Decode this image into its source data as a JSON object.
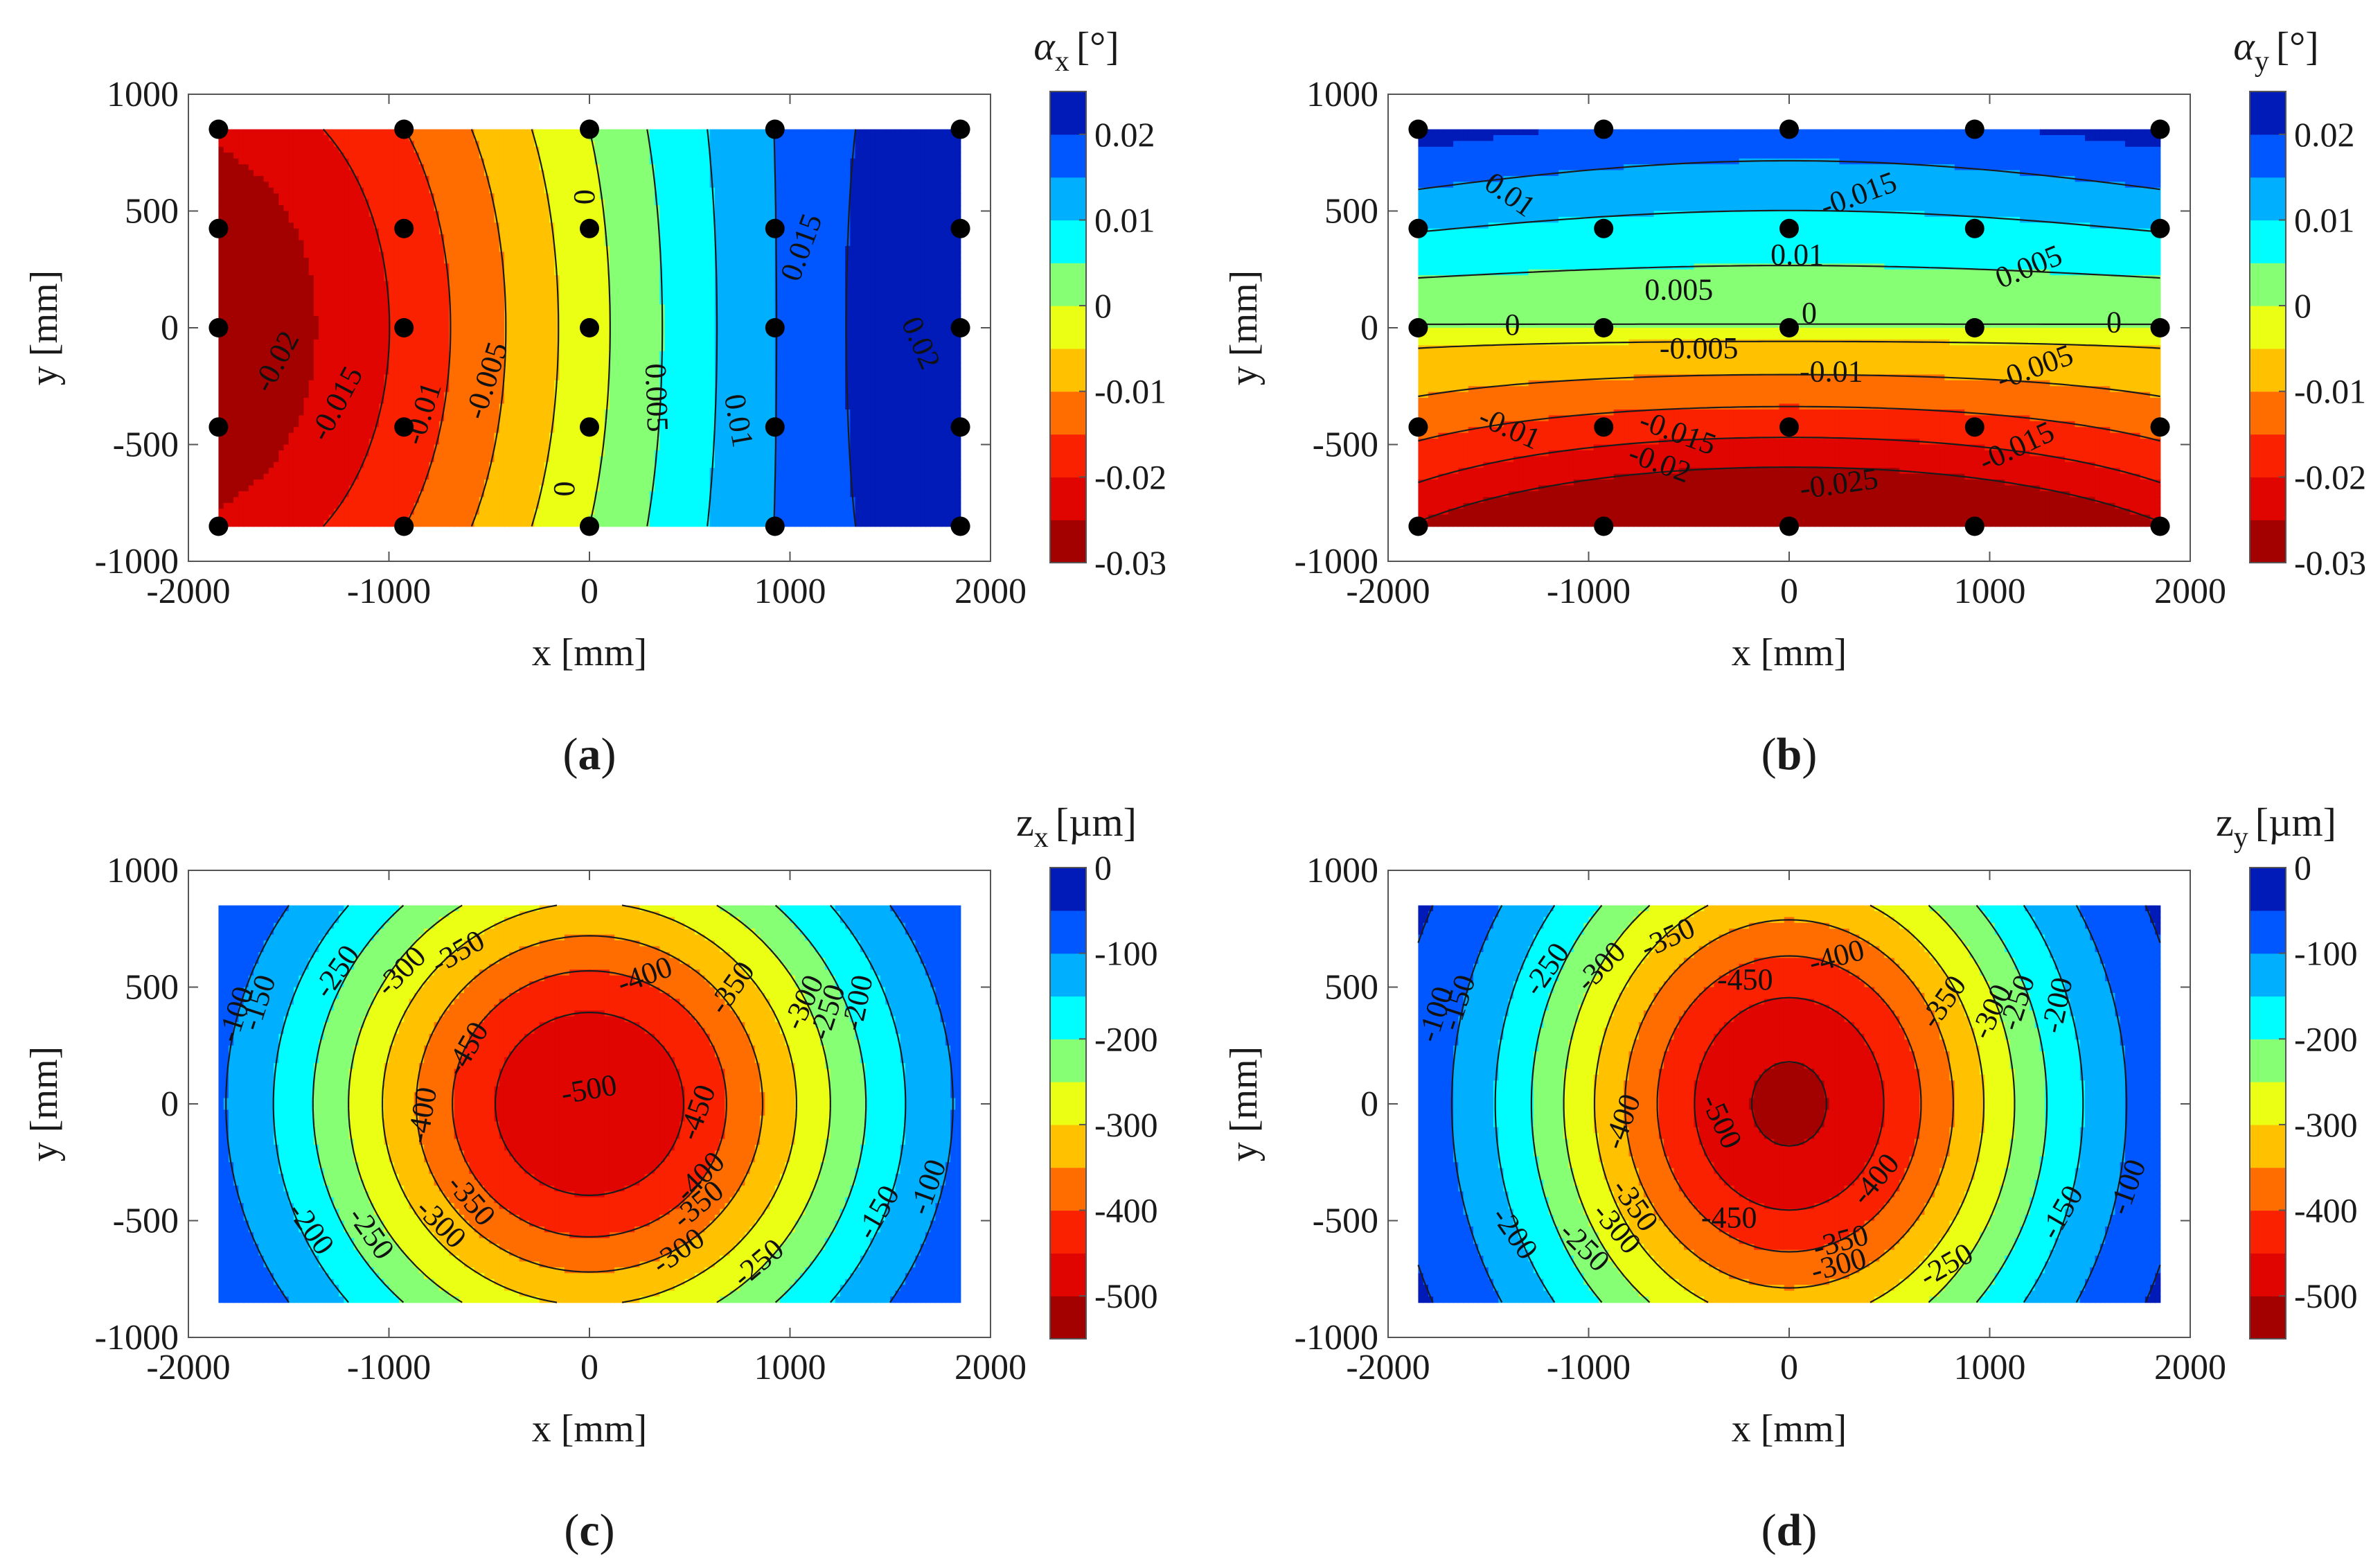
{
  "chart_data": [
    {
      "id": "a",
      "type": "heatmap",
      "subtype": "filled-contour",
      "panel_label": "a",
      "xlabel": "x [mm]",
      "ylabel": "y [mm]",
      "xlim": [
        -2000,
        2000
      ],
      "ylim": [
        -1000,
        1000
      ],
      "xticks": [
        -2000,
        -1000,
        0,
        1000,
        2000
      ],
      "xtick_labels": [
        "-2000",
        "-1000",
        "0",
        "1000",
        "2000"
      ],
      "yticks": [
        -1000,
        -500,
        0,
        500,
        1000
      ],
      "ytick_labels": [
        "-1000",
        "-500",
        "0",
        "500",
        "1000"
      ],
      "data_extent": {
        "x": [
          -1850,
          1850
        ],
        "y": [
          -850,
          850
        ]
      },
      "colorbar": {
        "title_symbol": "α",
        "title_subscript": "x",
        "title_unit": "[°]",
        "range": [
          -0.03,
          0.025
        ],
        "step": 0.005,
        "ticks": [
          -0.03,
          -0.02,
          -0.01,
          0,
          0.01,
          0.02
        ],
        "tick_labels": [
          "-0.03",
          "-0.02",
          "-0.01",
          "0",
          "0.01",
          "0.02"
        ]
      },
      "field": {
        "kind": "alpha_x"
      },
      "contour_levels": [
        -0.02,
        -0.015,
        -0.01,
        -0.005,
        0,
        0.005,
        0.01,
        0.015,
        0.02
      ],
      "contour_labels": [
        {
          "text": "-0.02",
          "x": -1550,
          "y": -150,
          "angle": -62
        },
        {
          "text": "-0.015",
          "x": -1250,
          "y": -330,
          "angle": -62
        },
        {
          "text": "-0.01",
          "x": -820,
          "y": -370,
          "angle": -72
        },
        {
          "text": "-0.005",
          "x": -500,
          "y": -230,
          "angle": -72
        },
        {
          "text": "0",
          "x": -10,
          "y": 560,
          "angle": -90
        },
        {
          "text": "0",
          "x": -110,
          "y": -690,
          "angle": -90
        },
        {
          "text": "0.005",
          "x": 320,
          "y": -300,
          "angle": 88
        },
        {
          "text": "0.01",
          "x": 730,
          "y": -400,
          "angle": 80
        },
        {
          "text": "0.015",
          "x": 1070,
          "y": 340,
          "angle": -70
        },
        {
          "text": "0.02",
          "x": 1640,
          "y": -70,
          "angle": 66
        }
      ],
      "points": {
        "x": [
          -1850,
          -925,
          0,
          925,
          1850
        ],
        "y": [
          850,
          425,
          0,
          -425,
          -850
        ]
      }
    },
    {
      "id": "b",
      "type": "heatmap",
      "subtype": "filled-contour",
      "panel_label": "b",
      "xlabel": "x [mm]",
      "ylabel": "y [mm]",
      "xlim": [
        -2000,
        2000
      ],
      "ylim": [
        -1000,
        1000
      ],
      "xticks": [
        -2000,
        -1000,
        0,
        1000,
        2000
      ],
      "xtick_labels": [
        "-2000",
        "-1000",
        "0",
        "1000",
        "2000"
      ],
      "yticks": [
        -1000,
        -500,
        0,
        500,
        1000
      ],
      "ytick_labels": [
        "-1000",
        "-500",
        "0",
        "500",
        "1000"
      ],
      "data_extent": {
        "x": [
          -1850,
          1850
        ],
        "y": [
          -850,
          850
        ]
      },
      "colorbar": {
        "title_symbol": "α",
        "title_subscript": "y",
        "title_unit": "[°]",
        "range": [
          -0.03,
          0.025
        ],
        "step": 0.005,
        "ticks": [
          -0.03,
          -0.02,
          -0.01,
          0,
          0.01,
          0.02
        ],
        "tick_labels": [
          "-0.03",
          "-0.02",
          "-0.01",
          "0",
          "0.01",
          "0.02"
        ]
      },
      "field": {
        "kind": "alpha_y"
      },
      "contour_levels": [
        -0.025,
        -0.02,
        -0.015,
        -0.01,
        -0.005,
        0,
        0.005,
        0.01,
        0.015
      ],
      "contour_labels": [
        {
          "text": "0.01",
          "x": -1400,
          "y": 560,
          "angle": 35
        },
        {
          "text": "-0.015",
          "x": 350,
          "y": 560,
          "angle": -20
        },
        {
          "text": "0.01",
          "x": 40,
          "y": 300,
          "angle": 0
        },
        {
          "text": "0.005",
          "x": 1200,
          "y": 250,
          "angle": -22
        },
        {
          "text": "0.005",
          "x": -550,
          "y": 150,
          "angle": 0
        },
        {
          "text": "0",
          "x": -1380,
          "y": 0,
          "angle": 0
        },
        {
          "text": "0",
          "x": 100,
          "y": 50,
          "angle": 0
        },
        {
          "text": "0",
          "x": 1620,
          "y": 10,
          "angle": 0
        },
        {
          "text": "-0.005",
          "x": -450,
          "y": -100,
          "angle": 0
        },
        {
          "text": "-0.005",
          "x": 1230,
          "y": -180,
          "angle": -20
        },
        {
          "text": "-0.01",
          "x": 210,
          "y": -200,
          "angle": 0
        },
        {
          "text": "-0.01",
          "x": -1400,
          "y": -440,
          "angle": 24
        },
        {
          "text": "-0.015",
          "x": -560,
          "y": -460,
          "angle": 20
        },
        {
          "text": "-0.015",
          "x": 1140,
          "y": -520,
          "angle": -25
        },
        {
          "text": "-0.02",
          "x": -650,
          "y": -590,
          "angle": 20
        },
        {
          "text": "-0.025",
          "x": 250,
          "y": -680,
          "angle": -8
        }
      ],
      "points": {
        "x": [
          -1850,
          -925,
          0,
          925,
          1850
        ],
        "y": [
          850,
          425,
          0,
          -425,
          -850
        ]
      }
    },
    {
      "id": "c",
      "type": "heatmap",
      "subtype": "filled-contour",
      "panel_label": "c",
      "xlabel": "x [mm]",
      "ylabel": "y [mm]",
      "xlim": [
        -2000,
        2000
      ],
      "ylim": [
        -1000,
        1000
      ],
      "xticks": [
        -2000,
        -1000,
        0,
        1000,
        2000
      ],
      "xtick_labels": [
        "-2000",
        "-1000",
        "0",
        "1000",
        "2000"
      ],
      "yticks": [
        -1000,
        -500,
        0,
        500,
        1000
      ],
      "ytick_labels": [
        "-1000",
        "-500",
        "0",
        "500",
        "1000"
      ],
      "data_extent": {
        "x": [
          -1850,
          1850
        ],
        "y": [
          -850,
          850
        ]
      },
      "colorbar": {
        "title_symbol": "z",
        "title_subscript": "x",
        "title_unit": "[µm]",
        "range": [
          -550,
          0
        ],
        "step": 50,
        "ticks": [
          -500,
          -400,
          -300,
          -200,
          -100,
          0
        ],
        "tick_labels": [
          "-500",
          "-400",
          "-300",
          "-200",
          "-100",
          "0"
        ]
      },
      "field": {
        "kind": "z_x"
      },
      "contour_levels": [
        -500,
        -450,
        -400,
        -350,
        -300,
        -250,
        -200,
        -150,
        -100,
        -50
      ],
      "contour_labels": [
        {
          "text": "-100",
          "x": -1750,
          "y": 380,
          "angle": -72
        },
        {
          "text": "-150",
          "x": -1640,
          "y": 430,
          "angle": -72
        },
        {
          "text": "-250",
          "x": -1250,
          "y": 560,
          "angle": -55
        },
        {
          "text": "-300",
          "x": -930,
          "y": 560,
          "angle": -45
        },
        {
          "text": "-350",
          "x": -650,
          "y": 640,
          "angle": -30
        },
        {
          "text": "-400",
          "x": 280,
          "y": 540,
          "angle": -20
        },
        {
          "text": "-350",
          "x": 720,
          "y": 490,
          "angle": -55
        },
        {
          "text": "-300",
          "x": 1080,
          "y": 430,
          "angle": -65
        },
        {
          "text": "-250",
          "x": 1200,
          "y": 390,
          "angle": -72
        },
        {
          "text": "-200",
          "x": 1350,
          "y": 430,
          "angle": -78
        },
        {
          "text": "-450",
          "x": -600,
          "y": 230,
          "angle": -60
        },
        {
          "text": "-500",
          "x": 0,
          "y": 50,
          "angle": -10
        },
        {
          "text": "-400",
          "x": -820,
          "y": -50,
          "angle": -80
        },
        {
          "text": "-450",
          "x": 550,
          "y": -40,
          "angle": -70
        },
        {
          "text": "-400",
          "x": 560,
          "y": -320,
          "angle": -45
        },
        {
          "text": "-350",
          "x": -600,
          "y": -420,
          "angle": 50
        },
        {
          "text": "-350",
          "x": 550,
          "y": -440,
          "angle": -40
        },
        {
          "text": "-300",
          "x": -750,
          "y": -520,
          "angle": 45
        },
        {
          "text": "-300",
          "x": 450,
          "y": -640,
          "angle": -35
        },
        {
          "text": "-250",
          "x": -1100,
          "y": -560,
          "angle": 55
        },
        {
          "text": "-250",
          "x": 850,
          "y": -690,
          "angle": -40
        },
        {
          "text": "-200",
          "x": -1400,
          "y": -540,
          "angle": 55
        },
        {
          "text": "-150",
          "x": 1450,
          "y": -470,
          "angle": -60
        },
        {
          "text": "-100",
          "x": 1700,
          "y": -360,
          "angle": -70
        }
      ],
      "points": {
        "x": [],
        "y": []
      }
    },
    {
      "id": "d",
      "type": "heatmap",
      "subtype": "filled-contour",
      "panel_label": "d",
      "xlabel": "x [mm]",
      "ylabel": "y [mm]",
      "xlim": [
        -2000,
        2000
      ],
      "ylim": [
        -1000,
        1000
      ],
      "xticks": [
        -2000,
        -1000,
        0,
        1000,
        2000
      ],
      "xtick_labels": [
        "-2000",
        "-1000",
        "0",
        "1000",
        "2000"
      ],
      "yticks": [
        -1000,
        -500,
        0,
        500,
        1000
      ],
      "ytick_labels": [
        "-1000",
        "-500",
        "0",
        "500",
        "1000"
      ],
      "data_extent": {
        "x": [
          -1850,
          1850
        ],
        "y": [
          -850,
          850
        ]
      },
      "colorbar": {
        "title_symbol": "z",
        "title_subscript": "y",
        "title_unit": "[µm]",
        "range": [
          -550,
          0
        ],
        "step": 50,
        "ticks": [
          -500,
          -400,
          -300,
          -200,
          -100,
          0
        ],
        "tick_labels": [
          "-500",
          "-400",
          "-300",
          "-200",
          "-100",
          "0"
        ]
      },
      "field": {
        "kind": "z_y"
      },
      "contour_levels": [
        -500,
        -450,
        -400,
        -350,
        -300,
        -250,
        -200,
        -150,
        -100,
        -50
      ],
      "contour_labels": [
        {
          "text": "-100",
          "x": -1750,
          "y": 380,
          "angle": -72
        },
        {
          "text": "-150",
          "x": -1640,
          "y": 430,
          "angle": -72
        },
        {
          "text": "-250",
          "x": -1200,
          "y": 570,
          "angle": -55
        },
        {
          "text": "-300",
          "x": -930,
          "y": 580,
          "angle": -45
        },
        {
          "text": "-350",
          "x": -600,
          "y": 700,
          "angle": -25
        },
        {
          "text": "-400",
          "x": 240,
          "y": 620,
          "angle": -15
        },
        {
          "text": "-450",
          "x": -220,
          "y": 520,
          "angle": 0
        },
        {
          "text": "-350",
          "x": 780,
          "y": 430,
          "angle": -55
        },
        {
          "text": "-300",
          "x": 1020,
          "y": 390,
          "angle": -65
        },
        {
          "text": "-250",
          "x": 1150,
          "y": 430,
          "angle": -72
        },
        {
          "text": "-200",
          "x": 1350,
          "y": 420,
          "angle": -78
        },
        {
          "text": "-400",
          "x": -820,
          "y": -80,
          "angle": -70
        },
        {
          "text": "-500",
          "x": -350,
          "y": -80,
          "angle": 65
        },
        {
          "text": "-450",
          "x": -300,
          "y": -500,
          "angle": 0
        },
        {
          "text": "-400",
          "x": 440,
          "y": -330,
          "angle": -50
        },
        {
          "text": "-350",
          "x": -780,
          "y": -440,
          "angle": 55
        },
        {
          "text": "-350",
          "x": 260,
          "y": -600,
          "angle": -15
        },
        {
          "text": "-300",
          "x": -870,
          "y": -540,
          "angle": 50
        },
        {
          "text": "-300",
          "x": 250,
          "y": -700,
          "angle": -15
        },
        {
          "text": "-250",
          "x": -1030,
          "y": -620,
          "angle": 45
        },
        {
          "text": "-250",
          "x": 790,
          "y": -700,
          "angle": -30
        },
        {
          "text": "-200",
          "x": -1380,
          "y": -560,
          "angle": 55
        },
        {
          "text": "-150",
          "x": 1370,
          "y": -470,
          "angle": -60
        },
        {
          "text": "-100",
          "x": 1700,
          "y": -360,
          "angle": -70
        }
      ],
      "points": {
        "x": [],
        "y": []
      }
    }
  ]
}
